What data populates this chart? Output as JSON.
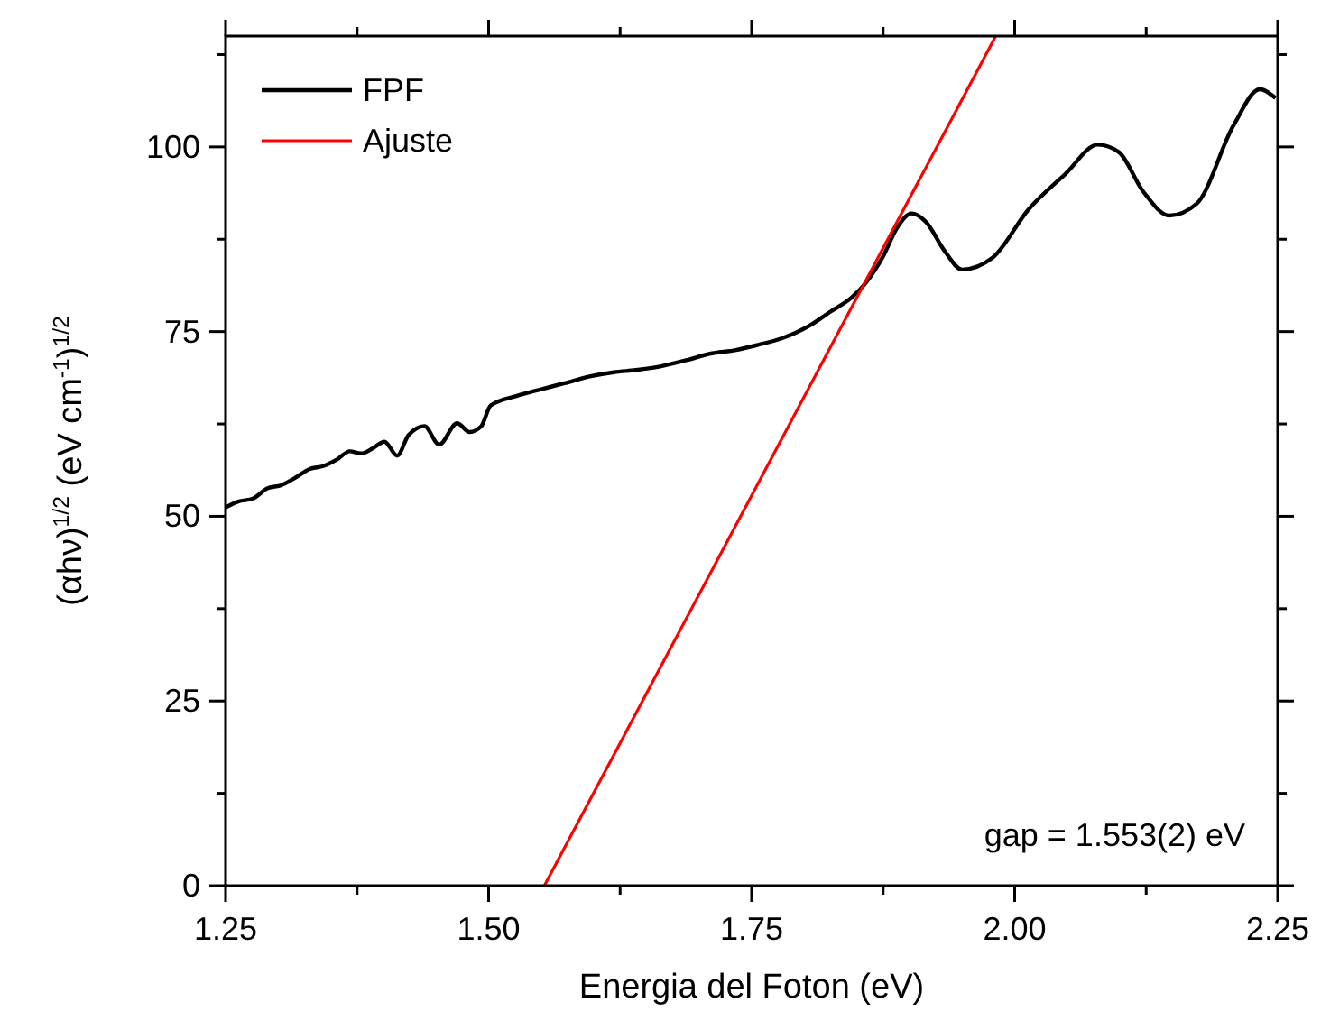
{
  "chart_data": {
    "type": "line",
    "xlabel": "Energia del Foton (eV)",
    "ylabel": "(αhν)$^{1/2}$ (eV cm$^{-1}$)$^{1/2}$",
    "xlim": [
      1.25,
      2.25
    ],
    "xticks": [
      1.25,
      {
        "value": 1.375,
        "label": null
      },
      {
        "value": 1.5,
        "label": "1.50"
      },
      {
        "value": 1.625,
        "label": null
      },
      1.75,
      {
        "value": 1.875,
        "label": null
      },
      {
        "value": 2,
        "label": "2.00"
      },
      {
        "value": 2.125,
        "label": null
      },
      2.25
    ],
    "ylim": [
      0,
      115
    ],
    "yticks": [
      0,
      {
        "value": 12.5,
        "label": null
      },
      25,
      {
        "value": 37.5,
        "label": null
      },
      50,
      {
        "value": 62.5,
        "label": null
      },
      75,
      {
        "value": 87.5,
        "label": null
      },
      100,
      {
        "value": 112.5,
        "label": null
      }
    ],
    "grid": false,
    "legend": "top left",
    "line_style": "solid",
    "annotations": [
      "gap = 1.553(2) eV"
    ],
    "series": [
      {
        "name": "FPF",
        "color": "#000000",
        "x": [
          1.25,
          1.262,
          1.276,
          1.29,
          1.303,
          1.316,
          1.33,
          1.343,
          1.356,
          1.368,
          1.379,
          1.39,
          1.401,
          1.413,
          1.424,
          1.439,
          1.453,
          1.47,
          1.482,
          1.493,
          1.502,
          1.527,
          1.55,
          1.572,
          1.595,
          1.619,
          1.64,
          1.664,
          1.69,
          1.71,
          1.735,
          1.756,
          1.779,
          1.805,
          1.825,
          1.845,
          1.859,
          1.875,
          1.888,
          1.902,
          1.916,
          1.933,
          1.95,
          1.979,
          2.013,
          2.048,
          2.079,
          2.099,
          2.122,
          2.147,
          2.173,
          2.208,
          2.233,
          2.248
        ],
        "values": [
          51.2,
          52.0,
          52.4,
          53.8,
          54.2,
          55.2,
          56.4,
          56.8,
          57.7,
          58.8,
          58.5,
          59.2,
          60.1,
          58.2,
          61,
          62.2,
          59.7,
          62.6,
          61.4,
          62.2,
          65,
          66.3,
          67.2,
          68,
          68.9,
          69.5,
          69.8,
          70.3,
          71.2,
          72,
          72.5,
          73.2,
          74.1,
          75.8,
          77.7,
          79.6,
          81.7,
          85.2,
          89,
          91,
          89.8,
          86,
          83.4,
          85,
          91.5,
          96.3,
          100.3,
          99.3,
          94,
          90.7,
          92.3,
          102.9,
          107.8,
          106.6
        ]
      },
      {
        "name": "Ajuste",
        "color": "#ff0000",
        "x": [
          1.553,
          1.982
        ],
        "values": [
          0,
          115
        ]
      }
    ]
  }
}
